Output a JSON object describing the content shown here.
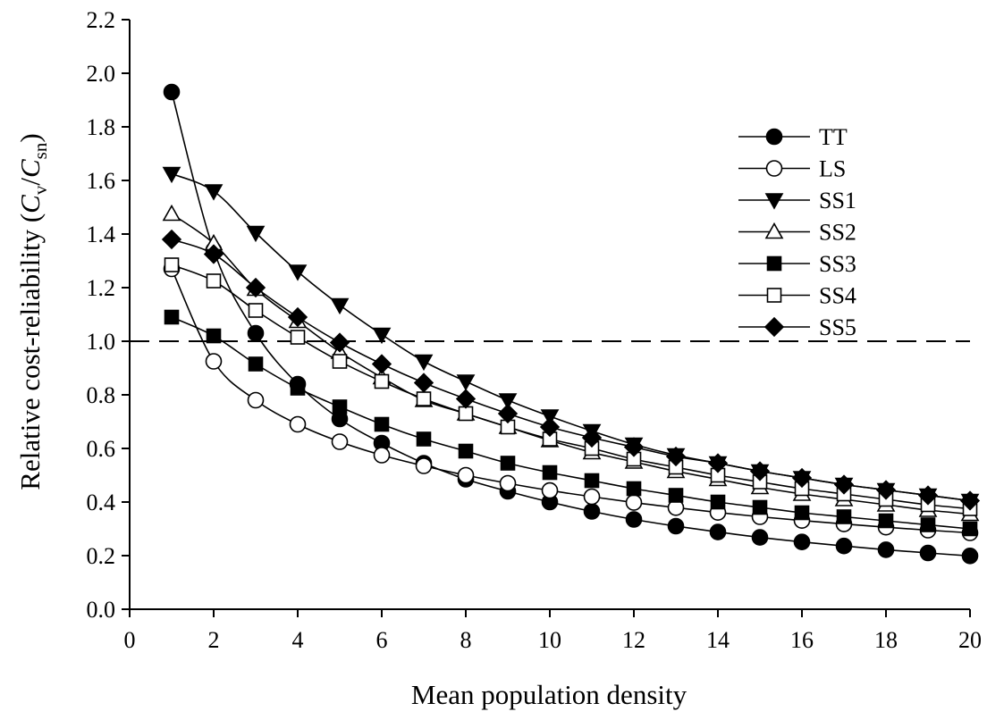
{
  "chart_data": {
    "type": "line",
    "xlabel": "Mean population density",
    "ylabel": {
      "prefix": "Relative cost-reliability (",
      "num_var": "C",
      "num_sub": "v",
      "slash": "/",
      "den_var": "C",
      "den_sub": "sn",
      "suffix": ")"
    },
    "xlim": [
      0,
      20
    ],
    "ylim": [
      0,
      2.2
    ],
    "x_ticks": [
      0,
      2,
      4,
      6,
      8,
      10,
      12,
      14,
      16,
      18,
      20
    ],
    "y_ticks": [
      0,
      0.2,
      0.4,
      0.6,
      0.8,
      1.0,
      1.2,
      1.4,
      1.6,
      1.8,
      2.0,
      2.2
    ],
    "x_tick_labels": [
      "0",
      "2",
      "4",
      "6",
      "8",
      "10",
      "12",
      "14",
      "16",
      "18",
      "20"
    ],
    "y_tick_labels": [
      "0.0",
      "0.2",
      "0.4",
      "0.6",
      "0.8",
      "1.0",
      "1.2",
      "1.4",
      "1.6",
      "1.8",
      "2.0",
      "2.2"
    ],
    "reference_line": {
      "y": 1.0,
      "style": "dashed"
    },
    "grid": false,
    "legend_position": "top-right",
    "x": [
      1,
      2,
      3,
      4,
      5,
      6,
      7,
      8,
      9,
      10,
      11,
      12,
      13,
      14,
      15,
      16,
      17,
      18,
      19,
      20
    ],
    "series": [
      {
        "name": "TT",
        "marker": "circle-filled",
        "values": [
          1.93,
          1.34,
          1.03,
          0.84,
          0.71,
          0.62,
          0.545,
          0.485,
          0.44,
          0.4,
          0.365,
          0.335,
          0.31,
          0.288,
          0.268,
          0.251,
          0.236,
          0.222,
          0.21,
          0.199
        ]
      },
      {
        "name": "LS",
        "marker": "circle-open",
        "values": [
          1.27,
          0.925,
          0.78,
          0.69,
          0.625,
          0.575,
          0.535,
          0.5,
          0.47,
          0.443,
          0.42,
          0.398,
          0.379,
          0.361,
          0.345,
          0.331,
          0.318,
          0.306,
          0.295,
          0.285
        ]
      },
      {
        "name": "SS1",
        "marker": "triangle-down-filled",
        "values": [
          1.625,
          1.56,
          1.405,
          1.26,
          1.135,
          1.025,
          0.925,
          0.85,
          0.78,
          0.72,
          0.665,
          0.615,
          0.575,
          0.545,
          0.515,
          0.49,
          0.465,
          0.445,
          0.425,
          0.405
        ]
      },
      {
        "name": "SS2",
        "marker": "triangle-up-open",
        "values": [
          1.475,
          1.365,
          1.195,
          1.075,
          0.96,
          0.865,
          0.78,
          0.73,
          0.68,
          0.63,
          0.585,
          0.55,
          0.515,
          0.485,
          0.455,
          0.43,
          0.41,
          0.39,
          0.37,
          0.355
        ]
      },
      {
        "name": "SS3",
        "marker": "square-filled",
        "values": [
          1.09,
          1.02,
          0.915,
          0.825,
          0.755,
          0.69,
          0.635,
          0.59,
          0.545,
          0.51,
          0.48,
          0.45,
          0.425,
          0.4,
          0.38,
          0.36,
          0.345,
          0.33,
          0.315,
          0.3
        ]
      },
      {
        "name": "SS4",
        "marker": "square-open",
        "values": [
          1.285,
          1.225,
          1.115,
          1.015,
          0.925,
          0.85,
          0.785,
          0.73,
          0.68,
          0.635,
          0.6,
          0.56,
          0.53,
          0.5,
          0.475,
          0.45,
          0.43,
          0.41,
          0.39,
          0.375
        ]
      },
      {
        "name": "SS5",
        "marker": "diamond-filled",
        "values": [
          1.38,
          1.325,
          1.2,
          1.09,
          0.995,
          0.915,
          0.845,
          0.785,
          0.73,
          0.68,
          0.64,
          0.605,
          0.57,
          0.545,
          0.515,
          0.49,
          0.465,
          0.445,
          0.425,
          0.405
        ]
      }
    ]
  }
}
